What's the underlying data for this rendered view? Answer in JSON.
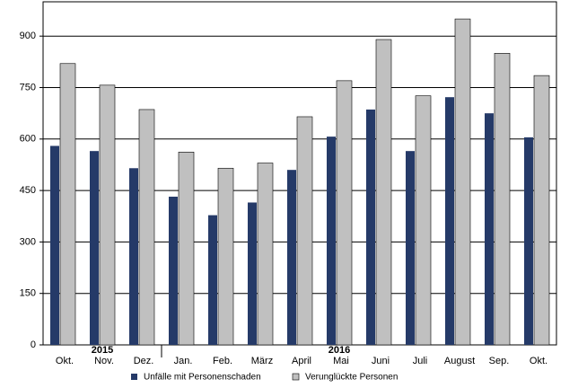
{
  "chart_data": {
    "type": "bar",
    "categories": [
      "Okt.",
      "Nov.",
      "Dez.",
      "Jan.",
      "Feb.",
      "März",
      "April",
      "Mai",
      "Juni",
      "Juli",
      "August",
      "Sep.",
      "Okt."
    ],
    "annotations": [
      "2015",
      "2016"
    ],
    "series": [
      {
        "name": "Unfälle mit Personenschaden",
        "color": "#253a68",
        "values": [
          580,
          565,
          515,
          432,
          378,
          415,
          510,
          607,
          686,
          565,
          722,
          675,
          605
        ]
      },
      {
        "name": "Verunglückte Personen",
        "color": "#c0c0c0",
        "values": [
          820,
          757,
          686,
          562,
          515,
          530,
          665,
          770,
          890,
          726,
          950,
          850,
          785
        ]
      }
    ],
    "ylim": [
      0,
      1000
    ],
    "yticks": [
      0,
      150,
      300,
      450,
      600,
      750,
      900
    ],
    "grid": true
  }
}
